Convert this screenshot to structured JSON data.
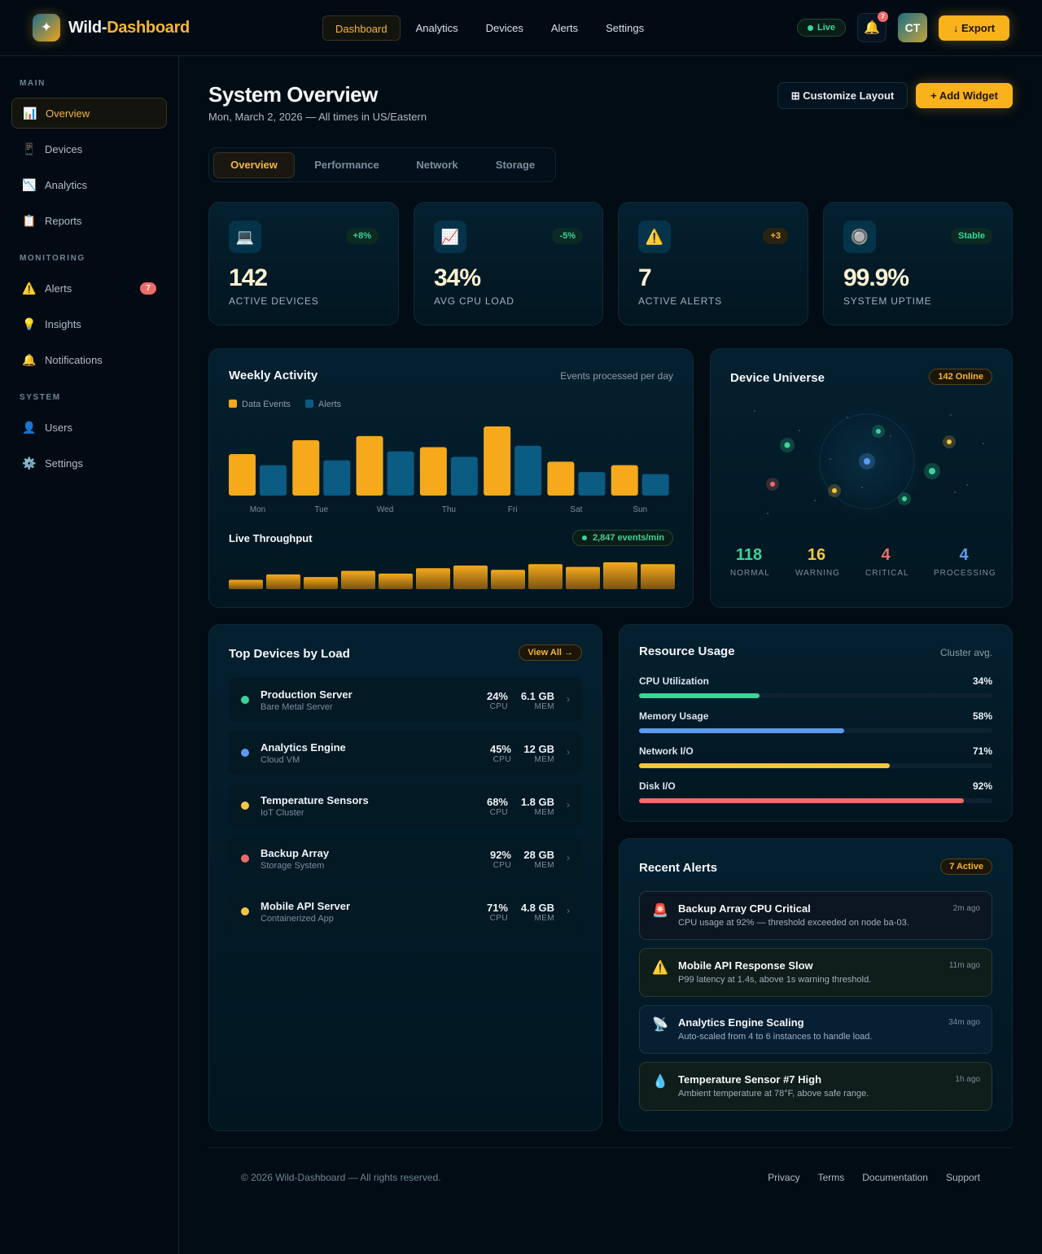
{
  "brand": {
    "name_part1": "Wild-",
    "name_part2": "Dashboard",
    "logo_icon": "sparkle-icon"
  },
  "nav": {
    "items": [
      "Dashboard",
      "Analytics",
      "Devices",
      "Alerts",
      "Settings"
    ],
    "active": "Dashboard"
  },
  "header": {
    "live_label": "Live",
    "notification_count": "7",
    "avatar_initials": "CT",
    "export_label": "↓ Export"
  },
  "sidebar": {
    "sections": [
      {
        "title": "MAIN",
        "items": [
          {
            "icon": "📊",
            "label": "Overview",
            "active": true
          },
          {
            "icon": "📱",
            "label": "Devices"
          },
          {
            "icon": "📉",
            "label": "Analytics"
          },
          {
            "icon": "📋",
            "label": "Reports"
          }
        ]
      },
      {
        "title": "MONITORING",
        "items": [
          {
            "icon": "⚠️",
            "label": "Alerts",
            "badge": "7"
          },
          {
            "icon": "💡",
            "label": "Insights"
          },
          {
            "icon": "🔔",
            "label": "Notifications"
          }
        ]
      },
      {
        "title": "SYSTEM",
        "items": [
          {
            "icon": "👤",
            "label": "Users"
          },
          {
            "icon": "⚙️",
            "label": "Settings"
          }
        ]
      }
    ]
  },
  "page": {
    "title": "System Overview",
    "subtitle": "Mon, March 2, 2026 — All times in US/Eastern",
    "customize_label": "⊞ Customize Layout",
    "add_widget_label": "+ Add Widget"
  },
  "tabs": {
    "items": [
      "Overview",
      "Performance",
      "Network",
      "Storage"
    ],
    "active": "Overview"
  },
  "stats": [
    {
      "icon": "💻",
      "badge": "+8%",
      "value": "142",
      "label": "ACTIVE DEVICES",
      "badge_color": "#3bd49a"
    },
    {
      "icon": "📈",
      "badge": "-5%",
      "value": "34%",
      "label": "AVG CPU LOAD",
      "badge_color": "#3bd49a"
    },
    {
      "icon": "⚠️",
      "badge": "+3",
      "value": "7",
      "label": "ACTIVE ALERTS",
      "badge_color": "#f5b53a"
    },
    {
      "icon": "🔘",
      "badge": "Stable",
      "value": "99.9%",
      "label": "SYSTEM UPTIME",
      "badge_color": "#3bd49a"
    }
  ],
  "weekly": {
    "title": "Weekly Activity",
    "note": "Events processed per day",
    "legend": [
      "Data Events",
      "Alerts"
    ]
  },
  "throughput": {
    "title": "Live Throughput",
    "pill": "2,847 events/min"
  },
  "chart_data": [
    {
      "type": "bar",
      "categories": [
        "Mon",
        "Tue",
        "Wed",
        "Thu",
        "Fri",
        "Sat",
        "Sun"
      ],
      "series": [
        {
          "name": "Data Events",
          "values": [
            60,
            80,
            86,
            70,
            100,
            49,
            44
          ],
          "color": "#f6a91b"
        },
        {
          "name": "Alerts",
          "values": [
            44,
            51,
            64,
            56,
            72,
            34,
            31
          ],
          "color": "#0b5b82"
        }
      ],
      "ylim": [
        0,
        100
      ]
    },
    {
      "type": "bar",
      "values": [
        35,
        55,
        45,
        68,
        58,
        78,
        88,
        72,
        93,
        83,
        100,
        93
      ],
      "ylim": [
        0,
        100
      ]
    }
  ],
  "universe": {
    "title": "Device Universe",
    "pill": "142 Online",
    "stats": [
      {
        "value": "118",
        "label": "NORMAL",
        "color": "#3bd49a"
      },
      {
        "value": "16",
        "label": "WARNING",
        "color": "#f5c542"
      },
      {
        "value": "4",
        "label": "CRITICAL",
        "color": "#f06b6b"
      },
      {
        "value": "4",
        "label": "PROCESSING",
        "color": "#5b9cf0"
      }
    ]
  },
  "devices": {
    "title": "Top Devices by Load",
    "view_all": "View All →",
    "rows": [
      {
        "name": "Production Server",
        "type": "Bare Metal Server",
        "cpu": "24%",
        "mem": "6.1 GB",
        "color": "#3bd49a"
      },
      {
        "name": "Analytics Engine",
        "type": "Cloud VM",
        "cpu": "45%",
        "mem": "12 GB",
        "color": "#5b9cf0"
      },
      {
        "name": "Temperature Sensors",
        "type": "IoT Cluster",
        "cpu": "68%",
        "mem": "1.8 GB",
        "color": "#f5c542"
      },
      {
        "name": "Backup Array",
        "type": "Storage System",
        "cpu": "92%",
        "mem": "28 GB",
        "color": "#f06b6b"
      },
      {
        "name": "Mobile API Server",
        "type": "Containerized App",
        "cpu": "71%",
        "mem": "4.8 GB",
        "color": "#f5c542"
      }
    ],
    "cpu_label": "CPU",
    "mem_label": "MEM"
  },
  "resources": {
    "title": "Resource Usage",
    "note": "Cluster avg.",
    "rows": [
      {
        "name": "CPU Utilization",
        "value": "34%",
        "level": 0.34,
        "color": "#3bd49a"
      },
      {
        "name": "Memory Usage",
        "value": "58%",
        "level": 0.58,
        "color": "#5b9cf0"
      },
      {
        "name": "Network I/O",
        "value": "71%",
        "level": 0.71,
        "color": "#f5c542"
      },
      {
        "name": "Disk I/O",
        "value": "92%",
        "level": 0.92,
        "color": "#f06b6b"
      }
    ]
  },
  "alerts": {
    "title": "Recent Alerts",
    "pill": "7 Active",
    "items": [
      {
        "icon": "🚨",
        "title": "Backup Array CPU Critical",
        "desc": "CPU usage at 92% — threshold exceeded on node ba-03.",
        "time": "2m ago"
      },
      {
        "icon": "⚠️",
        "title": "Mobile API Response Slow",
        "desc": "P99 latency at 1.4s, above 1s warning threshold.",
        "time": "11m ago"
      },
      {
        "icon": "📡",
        "title": "Analytics Engine Scaling",
        "desc": "Auto-scaled from 4 to 6 instances to handle load.",
        "time": "34m ago"
      },
      {
        "icon": "💧",
        "title": "Temperature Sensor #7 High",
        "desc": "Ambient temperature at 78°F, above safe range.",
        "time": "1h ago"
      }
    ]
  },
  "footer": {
    "copyright": "© 2026 Wild-Dashboard — All rights reserved.",
    "links": [
      "Privacy",
      "Terms",
      "Documentation",
      "Support"
    ]
  }
}
